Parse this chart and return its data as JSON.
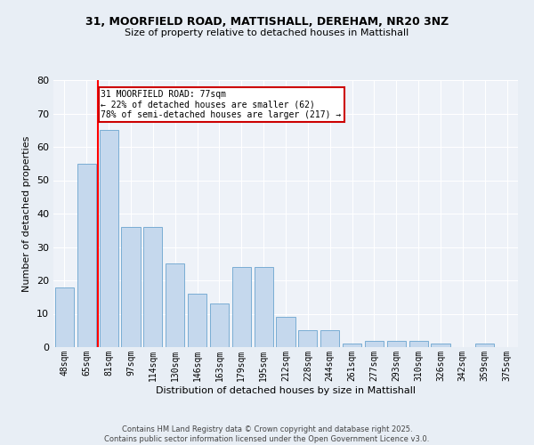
{
  "title_line1": "31, MOORFIELD ROAD, MATTISHALL, DEREHAM, NR20 3NZ",
  "title_line2": "Size of property relative to detached houses in Mattishall",
  "xlabel": "Distribution of detached houses by size in Mattishall",
  "ylabel": "Number of detached properties",
  "categories": [
    "48sqm",
    "65sqm",
    "81sqm",
    "97sqm",
    "114sqm",
    "130sqm",
    "146sqm",
    "163sqm",
    "179sqm",
    "195sqm",
    "212sqm",
    "228sqm",
    "244sqm",
    "261sqm",
    "277sqm",
    "293sqm",
    "310sqm",
    "326sqm",
    "342sqm",
    "359sqm",
    "375sqm"
  ],
  "values": [
    18,
    55,
    65,
    36,
    36,
    25,
    16,
    13,
    24,
    24,
    9,
    5,
    5,
    1,
    2,
    2,
    2,
    1,
    0,
    1,
    0
  ],
  "bar_color": "#c5d8ed",
  "bar_edge_color": "#7aadd4",
  "red_line_x": 1.5,
  "annotation_text": "31 MOORFIELD ROAD: 77sqm\n← 22% of detached houses are smaller (62)\n78% of semi-detached houses are larger (217) →",
  "annotation_box_color": "#ffffff",
  "annotation_box_edge_color": "#cc0000",
  "ylim": [
    0,
    80
  ],
  "yticks": [
    0,
    10,
    20,
    30,
    40,
    50,
    60,
    70,
    80
  ],
  "footer_text": "Contains HM Land Registry data © Crown copyright and database right 2025.\nContains public sector information licensed under the Open Government Licence v3.0.",
  "background_color": "#e8eef5",
  "plot_bg_color": "#eef2f8",
  "title1_fontsize": 9,
  "title2_fontsize": 8,
  "ylabel_fontsize": 8,
  "xlabel_fontsize": 8,
  "tick_fontsize": 7,
  "annotation_fontsize": 7,
  "footer_fontsize": 6
}
